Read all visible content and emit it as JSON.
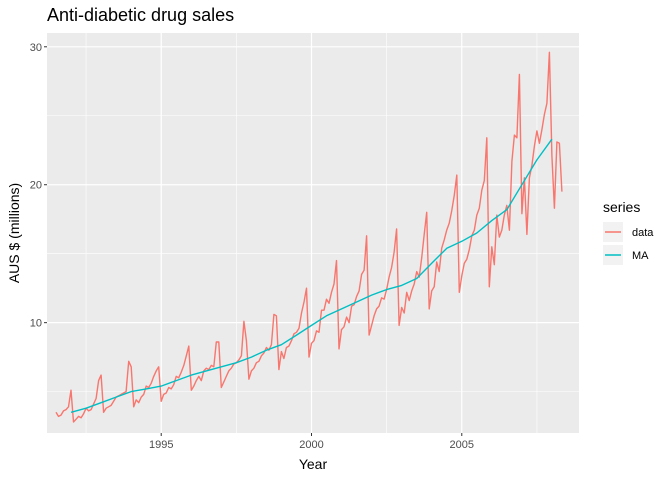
{
  "chart_data": {
    "type": "line",
    "title": "Anti-diabetic drug sales",
    "xlabel": "Year",
    "ylabel": "AUS $ (millions)",
    "xlim": [
      1991.2,
      2008.9
    ],
    "ylim": [
      2.0,
      31.0
    ],
    "x_ticks": [
      1995,
      2000,
      2005
    ],
    "y_ticks": [
      10,
      20,
      30
    ],
    "grid": true,
    "legend": {
      "title": "series",
      "placement": "right"
    },
    "series": [
      {
        "name": "data",
        "color": "#F8766D",
        "start": 1991.5,
        "step": 0.08333,
        "values": [
          3.5,
          3.2,
          3.3,
          3.6,
          3.7,
          3.9,
          5.1,
          2.8,
          3.0,
          3.2,
          3.1,
          3.4,
          3.8,
          3.6,
          3.7,
          4.1,
          4.5,
          5.8,
          6.2,
          3.5,
          3.8,
          3.9,
          4.0,
          4.3,
          4.6,
          4.7,
          4.8,
          4.9,
          5.0,
          7.2,
          6.8,
          3.9,
          4.4,
          4.2,
          4.6,
          4.8,
          5.4,
          5.3,
          5.6,
          6.1,
          6.5,
          6.8,
          4.3,
          4.8,
          4.9,
          5.3,
          5.2,
          5.5,
          6.1,
          6.0,
          6.4,
          6.9,
          7.6,
          8.3,
          5.1,
          5.4,
          5.8,
          6.1,
          5.8,
          6.5,
          6.7,
          6.6,
          6.9,
          6.8,
          8.6,
          8.6,
          5.3,
          5.7,
          6.1,
          6.5,
          6.7,
          7.0,
          7.1,
          7.3,
          7.6,
          10.1,
          8.7,
          5.9,
          6.5,
          6.7,
          7.1,
          7.2,
          7.6,
          7.8,
          8.2,
          8.0,
          8.4,
          10.6,
          10.5,
          6.6,
          7.9,
          7.4,
          8.2,
          8.3,
          8.7,
          9.2,
          9.3,
          9.6,
          10.7,
          11.5,
          12.5,
          7.5,
          8.5,
          8.7,
          9.4,
          9.3,
          10.9,
          10.9,
          11.7,
          11.4,
          12.2,
          12.8,
          14.5,
          8.1,
          9.5,
          9.7,
          10.4,
          10.0,
          11.2,
          11.3,
          11.9,
          12.3,
          13.5,
          13.8,
          16.3,
          9.1,
          9.8,
          10.5,
          11.0,
          11.2,
          11.8,
          11.7,
          12.4,
          13.3,
          14.0,
          15.1,
          16.8,
          9.8,
          11.1,
          10.7,
          12.2,
          11.6,
          12.3,
          12.8,
          13.7,
          13.3,
          14.7,
          16.4,
          18.0,
          11.0,
          12.3,
          12.6,
          14.4,
          13.7,
          15.4,
          16.0,
          16.7,
          17.2,
          18.1,
          19.2,
          20.7,
          12.2,
          13.4,
          14.3,
          14.6,
          15.3,
          16.3,
          16.7,
          17.8,
          18.3,
          19.6,
          20.3,
          23.4,
          12.6,
          15.5,
          14.2,
          17.8,
          16.2,
          16.7,
          17.8,
          18.5,
          16.7,
          21.7,
          23.6,
          23.4,
          28.0,
          17.9,
          20.5,
          16.4,
          20.5,
          21.4,
          22.8,
          23.9,
          23.0,
          24.0,
          25.1,
          25.9,
          29.6,
          22.1,
          18.3,
          23.1,
          23.0,
          19.5
        ]
      },
      {
        "name": "MA",
        "color": "#00BFC4",
        "points": [
          [
            1992.0,
            3.5
          ],
          [
            1992.5,
            3.8
          ],
          [
            1993.0,
            4.2
          ],
          [
            1993.5,
            4.6
          ],
          [
            1994.0,
            5.0
          ],
          [
            1994.5,
            5.2
          ],
          [
            1995.0,
            5.4
          ],
          [
            1995.5,
            5.8
          ],
          [
            1996.0,
            6.2
          ],
          [
            1996.5,
            6.5
          ],
          [
            1997.0,
            6.8
          ],
          [
            1997.5,
            7.1
          ],
          [
            1998.0,
            7.5
          ],
          [
            1998.5,
            8.0
          ],
          [
            1999.0,
            8.4
          ],
          [
            1999.5,
            9.1
          ],
          [
            2000.0,
            9.8
          ],
          [
            2000.5,
            10.5
          ],
          [
            2001.0,
            11.0
          ],
          [
            2001.5,
            11.5
          ],
          [
            2002.0,
            12.0
          ],
          [
            2002.5,
            12.4
          ],
          [
            2003.0,
            12.7
          ],
          [
            2003.5,
            13.2
          ],
          [
            2004.0,
            14.3
          ],
          [
            2004.5,
            15.4
          ],
          [
            2005.0,
            15.9
          ],
          [
            2005.5,
            16.5
          ],
          [
            2006.0,
            17.4
          ],
          [
            2006.5,
            18.2
          ],
          [
            2007.0,
            20.0
          ],
          [
            2007.5,
            21.8
          ],
          [
            2008.0,
            23.3
          ]
        ]
      }
    ]
  }
}
